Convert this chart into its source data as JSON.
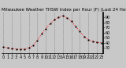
{
  "title": "Milwaukee Weather THSW Index per Hour (F) (Last 24 Hours)",
  "hours": [
    0,
    1,
    2,
    3,
    4,
    5,
    6,
    7,
    8,
    9,
    10,
    11,
    12,
    13,
    14,
    15,
    16,
    17,
    18,
    19,
    20,
    21,
    22,
    23
  ],
  "values": [
    32,
    30,
    29,
    28,
    27,
    28,
    30,
    35,
    45,
    58,
    68,
    78,
    85,
    91,
    93,
    89,
    82,
    72,
    62,
    52,
    46,
    43,
    41,
    40
  ],
  "line_color": "#ff0000",
  "marker_color": "#000000",
  "bg_color": "#c8c8c8",
  "plot_bg_color": "#c8c8c8",
  "grid_color": "#888888",
  "title_color": "#000000",
  "ylim_min": 20,
  "ylim_max": 100,
  "ytick_values": [
    30,
    40,
    50,
    60,
    70,
    80,
    90
  ],
  "xtick_values": [
    0,
    1,
    2,
    3,
    4,
    5,
    6,
    7,
    8,
    9,
    10,
    11,
    12,
    13,
    14,
    15,
    16,
    17,
    18,
    19,
    20,
    21,
    22,
    23
  ],
  "grid_xticks": [
    0,
    2,
    4,
    6,
    8,
    10,
    12,
    14,
    16,
    18,
    20,
    22
  ],
  "title_fontsize": 4.0,
  "axis_fontsize": 3.5
}
